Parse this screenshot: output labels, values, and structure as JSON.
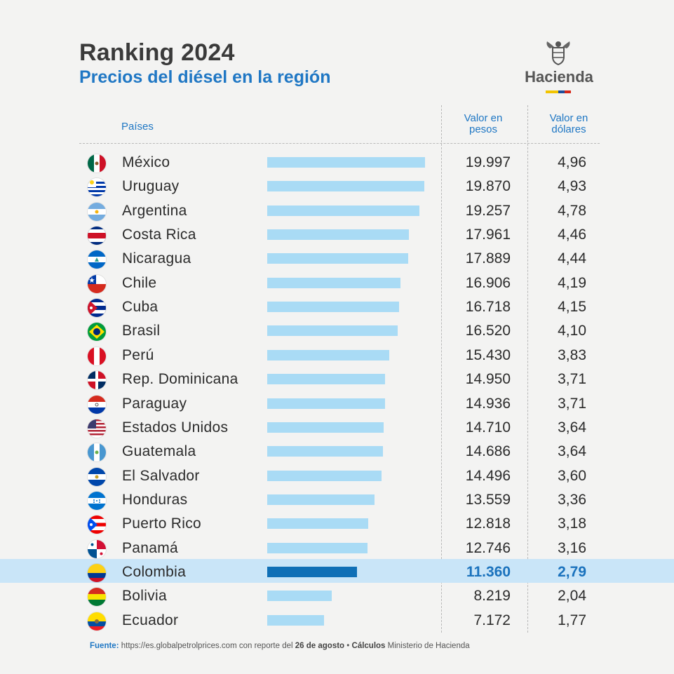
{
  "header": {
    "title": "Ranking 2024",
    "subtitle": "Precios del diésel en la región",
    "brand": "Hacienda",
    "brand_stripe": [
      "#f2c400",
      "#1f4e9c",
      "#d62718"
    ]
  },
  "columns": {
    "countries": "Países",
    "pesos": "Valor en pesos",
    "usd": "Valor en dólares"
  },
  "highlight_color": "#0f6fb6",
  "bar_color": "#a9dbf5",
  "chart_data": {
    "type": "bar",
    "title": "Ranking 2024",
    "subtitle": "Precios del diésel en la región",
    "categories": [
      "México",
      "Uruguay",
      "Argentina",
      "Costa Rica",
      "Nicaragua",
      "Chile",
      "Cuba",
      "Brasil",
      "Perú",
      "Rep. Dominicana",
      "Paraguay",
      "Estados Unidos",
      "Guatemala",
      "El Salvador",
      "Honduras",
      "Puerto Rico",
      "Panamá",
      "Colombia",
      "Bolivia",
      "Ecuador"
    ],
    "series": [
      {
        "name": "Valor en pesos",
        "values": [
          19997,
          19870,
          19257,
          17961,
          17889,
          16906,
          16718,
          16520,
          15430,
          14950,
          14936,
          14710,
          14686,
          14496,
          13559,
          12818,
          12746,
          11360,
          8219,
          7172
        ],
        "labels": [
          "19.997",
          "19.870",
          "19.257",
          "17.961",
          "17.889",
          "16.906",
          "16.718",
          "16.520",
          "15.430",
          "14.950",
          "14.936",
          "14.710",
          "14.686",
          "14.496",
          "13.559",
          "12.818",
          "12.746",
          "11.360",
          "8.219",
          "7.172"
        ]
      },
      {
        "name": "Valor en dólares",
        "values": [
          4.96,
          4.93,
          4.78,
          4.46,
          4.44,
          4.19,
          4.15,
          4.1,
          3.83,
          3.71,
          3.71,
          3.64,
          3.64,
          3.6,
          3.36,
          3.18,
          3.16,
          2.79,
          2.04,
          1.77
        ],
        "labels": [
          "4,96",
          "4,93",
          "4,78",
          "4,46",
          "4,44",
          "4,19",
          "4,15",
          "4,10",
          "3,83",
          "3,71",
          "3,71",
          "3,64",
          "3,64",
          "3,60",
          "3,36",
          "3,18",
          "3,16",
          "2,79",
          "2,04",
          "1,77"
        ]
      }
    ],
    "highlighted": "Colombia",
    "orientation": "horizontal",
    "grid": false,
    "legend": "none"
  },
  "flags": [
    "mexico-flag",
    "uruguay-flag",
    "argentina-flag",
    "costa-rica-flag",
    "nicaragua-flag",
    "chile-flag",
    "cuba-flag",
    "brazil-flag",
    "peru-flag",
    "dominican-republic-flag",
    "paraguay-flag",
    "united-states-flag",
    "guatemala-flag",
    "el-salvador-flag",
    "honduras-flag",
    "puerto-rico-flag",
    "panama-flag",
    "colombia-flag",
    "bolivia-flag",
    "ecuador-flag"
  ],
  "footer": {
    "source_label": "Fuente:",
    "source_text": "https://es.globalpetrolprices.com con reporte del",
    "date": "26 de agosto",
    "separator": "•",
    "calc_label": "Cálculos",
    "calc_text": "Ministerio de Hacienda"
  }
}
